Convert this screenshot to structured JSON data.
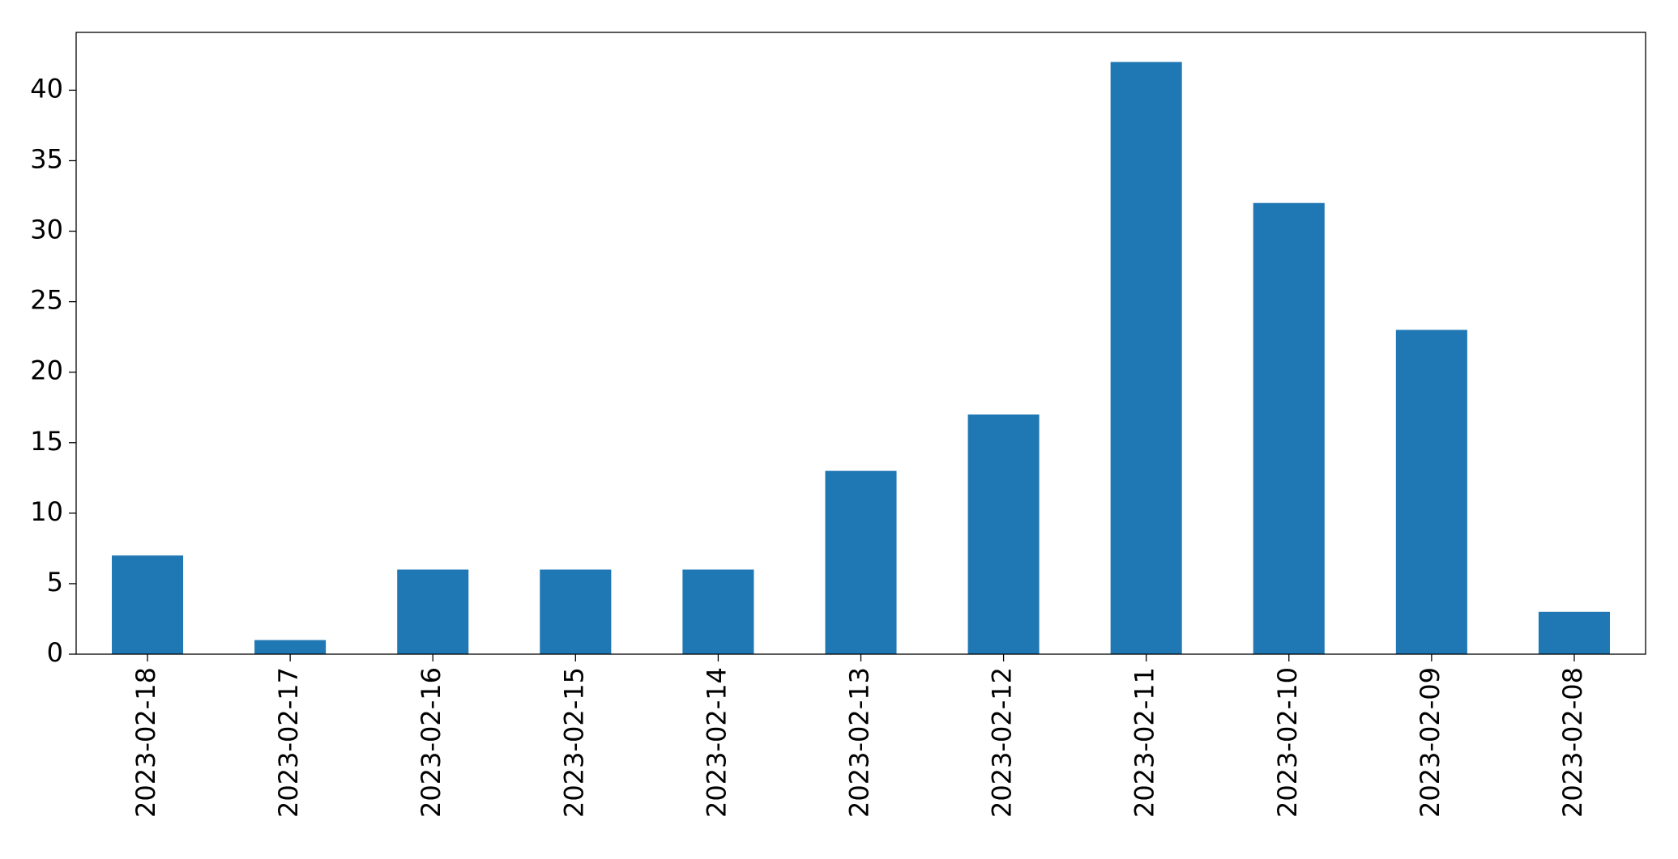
{
  "chart_data": {
    "type": "bar",
    "categories": [
      "2023-02-18",
      "2023-02-17",
      "2023-02-16",
      "2023-02-15",
      "2023-02-14",
      "2023-02-13",
      "2023-02-12",
      "2023-02-11",
      "2023-02-10",
      "2023-02-09",
      "2023-02-08"
    ],
    "values": [
      7,
      1,
      6,
      6,
      6,
      13,
      17,
      42,
      32,
      23,
      3
    ],
    "color": "#1f77b4",
    "ylim": [
      0,
      44.1
    ],
    "yticks": [
      0,
      5,
      10,
      15,
      20,
      25,
      30,
      35,
      40
    ],
    "grid": false
  }
}
